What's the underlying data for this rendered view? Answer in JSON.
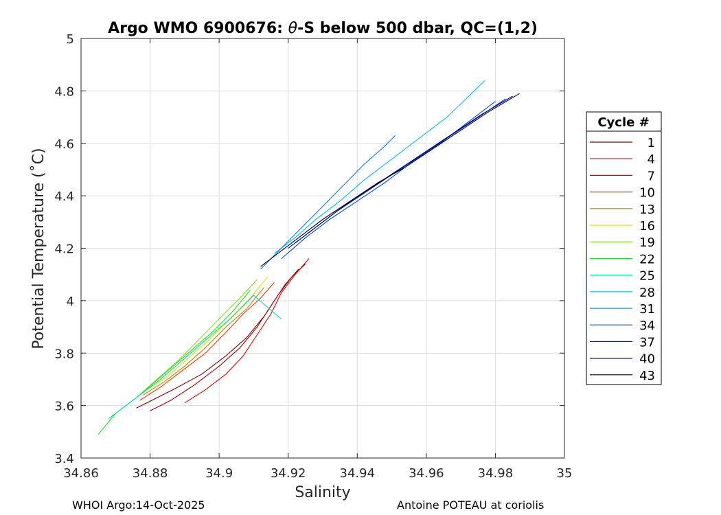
{
  "chart_data": {
    "type": "line",
    "title_prefix": "Argo WMO 6900676: ",
    "title_theta": "θ",
    "title_suffix": "-S below 500 dbar,  QC=(1,2)",
    "xlabel": "Salinity",
    "ylabel": "Potential Temperature (˚C)",
    "xlim": [
      34.86,
      35.0
    ],
    "ylim": [
      3.4,
      5.0
    ],
    "xticks": [
      34.86,
      34.88,
      34.9,
      34.92,
      34.94,
      34.96,
      34.98,
      35
    ],
    "xtick_labels": [
      "34.86",
      "34.88",
      "34.9",
      "34.92",
      "34.94",
      "34.96",
      "34.98",
      "35"
    ],
    "yticks": [
      3.4,
      3.6,
      3.8,
      4.0,
      4.2,
      4.4,
      4.6,
      4.8,
      5.0
    ],
    "ytick_labels": [
      "3.4",
      "3.6",
      "3.8",
      "4",
      "4.2",
      "4.4",
      "4.6",
      "4.8",
      "5"
    ],
    "grid": true,
    "legend_title": "Cycle #",
    "legend_placement": "right",
    "series": [
      {
        "name": "1",
        "color": "#800000",
        "x": [
          34.876,
          34.882,
          34.888,
          34.895,
          34.902,
          34.908,
          34.913,
          34.917,
          34.921,
          34.925
        ],
        "y": [
          3.59,
          3.63,
          3.67,
          3.72,
          3.79,
          3.86,
          3.94,
          4.02,
          4.09,
          4.14
        ]
      },
      {
        "name": "4",
        "color": "#a00000",
        "x": [
          34.88,
          34.886,
          34.893,
          34.9,
          34.906,
          34.911,
          34.915,
          34.919,
          34.923
        ],
        "y": [
          3.58,
          3.62,
          3.68,
          3.75,
          3.82,
          3.9,
          3.98,
          4.06,
          4.12
        ]
      },
      {
        "name": "7",
        "color": "#d40000",
        "x": [
          34.89,
          34.896,
          34.902,
          34.907,
          34.911,
          34.915,
          34.918,
          34.922,
          34.926
        ],
        "y": [
          3.61,
          3.66,
          3.72,
          3.79,
          3.87,
          3.95,
          4.03,
          4.1,
          4.16
        ]
      },
      {
        "name": "10",
        "color": "#e04000",
        "x": [
          34.877,
          34.883,
          34.889,
          34.896,
          34.902,
          34.907,
          34.912,
          34.916
        ],
        "y": [
          3.62,
          3.67,
          3.73,
          3.8,
          3.88,
          3.95,
          4.01,
          4.07
        ]
      },
      {
        "name": "13",
        "color": "#c08000",
        "x": [
          34.878,
          34.884,
          34.89,
          34.896,
          34.902,
          34.908,
          34.913
        ],
        "y": [
          3.64,
          3.69,
          3.75,
          3.82,
          3.9,
          3.97,
          4.05
        ]
      },
      {
        "name": "16",
        "color": "#e0e000",
        "x": [
          34.879,
          34.885,
          34.891,
          34.897,
          34.903,
          34.909,
          34.914
        ],
        "y": [
          3.66,
          3.71,
          3.78,
          3.85,
          3.93,
          4.01,
          4.09
        ]
      },
      {
        "name": "19",
        "color": "#80e000",
        "x": [
          34.876,
          34.882,
          34.888,
          34.894,
          34.9,
          34.906,
          34.911
        ],
        "y": [
          3.63,
          3.7,
          3.77,
          3.85,
          3.93,
          4.01,
          4.08
        ]
      },
      {
        "name": "22",
        "color": "#20e020",
        "x": [
          34.865,
          34.87,
          34.877,
          34.884,
          34.891,
          34.898,
          34.904,
          34.909
        ],
        "y": [
          3.49,
          3.57,
          3.64,
          3.72,
          3.8,
          3.88,
          3.96,
          4.04
        ]
      },
      {
        "name": "25",
        "color": "#00e0a0",
        "x": [
          34.868,
          34.875,
          34.883,
          34.89,
          34.897,
          34.904,
          34.91,
          34.918
        ],
        "y": [
          3.55,
          3.62,
          3.7,
          3.78,
          3.86,
          3.94,
          4.02,
          3.93
        ]
      },
      {
        "name": "28",
        "color": "#00c0e0",
        "x": [
          34.916,
          34.922,
          34.928,
          34.935,
          34.942,
          34.95,
          34.958,
          34.966,
          34.977
        ],
        "y": [
          4.18,
          4.24,
          4.31,
          4.38,
          4.46,
          4.54,
          4.62,
          4.7,
          4.84
        ]
      },
      {
        "name": "31",
        "color": "#0080e0",
        "x": [
          34.912,
          34.918,
          34.924,
          34.93,
          34.936,
          34.942,
          34.948,
          34.951
        ],
        "y": [
          4.12,
          4.2,
          4.28,
          4.36,
          4.44,
          4.52,
          4.59,
          4.63
        ]
      },
      {
        "name": "34",
        "color": "#0050d0",
        "x": [
          34.918,
          34.925,
          34.932,
          34.94,
          34.948,
          34.956,
          34.964,
          34.972,
          34.98
        ],
        "y": [
          4.16,
          4.24,
          4.31,
          4.38,
          4.45,
          4.53,
          4.6,
          4.68,
          4.76
        ]
      },
      {
        "name": "37",
        "color": "#0020c0",
        "x": [
          34.92,
          34.927,
          34.934,
          34.942,
          34.95,
          34.958,
          34.966,
          34.974,
          34.983
        ],
        "y": [
          4.2,
          4.27,
          4.34,
          4.41,
          4.48,
          4.55,
          4.62,
          4.69,
          4.77
        ]
      },
      {
        "name": "40",
        "color": "#000080",
        "x": [
          34.922,
          34.929,
          34.936,
          34.944,
          34.952,
          34.96,
          34.968,
          34.976,
          34.985
        ],
        "y": [
          4.22,
          4.29,
          4.36,
          4.43,
          4.5,
          4.57,
          4.64,
          4.71,
          4.78
        ]
      },
      {
        "name": "43",
        "color": "#000030",
        "x": [
          34.912,
          34.918,
          34.924,
          34.93,
          34.938,
          34.946,
          34.954,
          34.962,
          34.97,
          34.978,
          34.987
        ],
        "y": [
          4.13,
          4.19,
          4.25,
          4.31,
          4.38,
          4.45,
          4.51,
          4.58,
          4.65,
          4.72,
          4.79
        ]
      }
    ]
  },
  "footer": {
    "left": "WHOI Argo:14-Oct-2025",
    "right": "Antoine POTEAU at coriolis"
  }
}
